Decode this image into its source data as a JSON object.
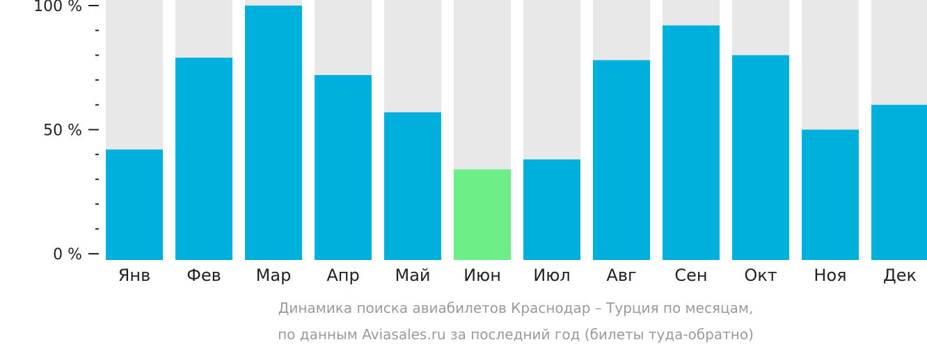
{
  "chart_data": {
    "type": "bar",
    "categories": [
      "Янв",
      "Фев",
      "Мар",
      "Апр",
      "Май",
      "Июн",
      "Июл",
      "Авг",
      "Сен",
      "Окт",
      "Ноя",
      "Дек"
    ],
    "values": [
      42,
      79,
      100,
      72,
      57,
      34,
      38,
      78,
      92,
      80,
      50,
      60
    ],
    "highlight_index": 5,
    "ylim": [
      0,
      100
    ],
    "y_ticks": [
      {
        "value": 0,
        "label": "0 %"
      },
      {
        "value": 50,
        "label": "50 %"
      },
      {
        "value": 100,
        "label": "100 %"
      }
    ],
    "minor_tick_step": 10,
    "caption_lines": [
      "Динамика поиска авиабилетов Краснодар – Турция по месяцам,",
      "по данным Aviasales.ru за последний год (билеты туда-обратно)"
    ],
    "colors": {
      "bar": "#00b0dc",
      "highlight": "#6bef86",
      "track": "#e8e8e8",
      "axis": "#222222",
      "caption": "#9a9a9a"
    }
  }
}
